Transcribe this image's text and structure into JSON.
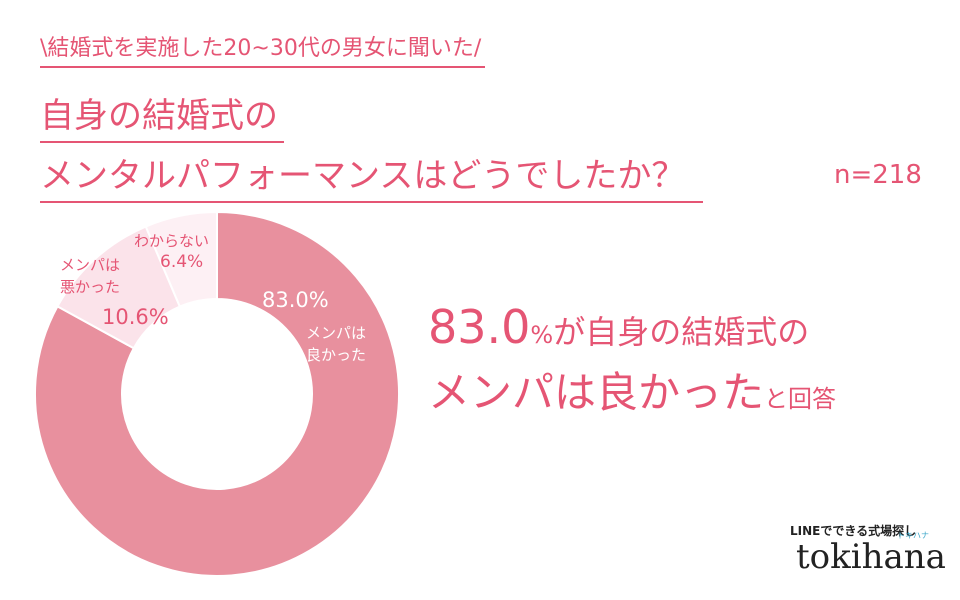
{
  "header": {
    "subtitle": "\\結婚式を実施した20~30代の男女に聞いた/",
    "title_lines": [
      "自身の結婚式の",
      "メンタルパフォーマンスはどうでしたか？"
    ],
    "sample": "n=218"
  },
  "chart_data": {
    "type": "donut",
    "categories": [
      "メンパは良かった",
      "メンパは悪かった",
      "わからない"
    ],
    "values": [
      83.0,
      10.6,
      6.4
    ],
    "value_labels": [
      "83.0%",
      "10.6%",
      "6.4%"
    ],
    "colors": [
      "#e8909e",
      "#fbe3ea",
      "#fdf0f4"
    ]
  },
  "headline": [
    "83.0",
    "%",
    "が自身の結婚式の",
    "メンパは良かった",
    "と回答"
  ],
  "logo": {
    "tagline": "LINEでできる式場探し",
    "name": "tokihana",
    "kana": "トキハナ"
  }
}
